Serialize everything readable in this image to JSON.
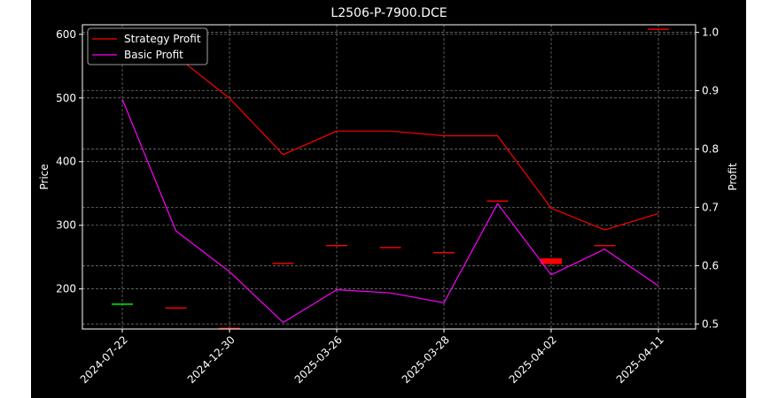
{
  "chart_data": {
    "type": "line",
    "title": "L2506-P-7900.DCE",
    "ylabel_left": "Price",
    "ylabel_right": "Profit",
    "xlabel": "",
    "x_tick_labels": [
      "2024-07-22",
      "2024-12-30",
      "2025-03-26",
      "2025-03-28",
      "2025-04-02",
      "2025-04-11"
    ],
    "left_axis": {
      "ylim": [
        137,
        615
      ],
      "ticks": [
        200,
        300,
        400,
        500,
        600
      ]
    },
    "right_axis": {
      "ylim": [
        0.4913,
        1.0131
      ],
      "ticks": [
        0.5,
        0.6,
        0.7,
        0.8,
        0.9,
        1.0
      ]
    },
    "grid": true,
    "legend_position": "top-left",
    "colors": {
      "background": "#000000",
      "foreground": "#ffffff",
      "strategy": "#ff0000",
      "basic": "#ff00ff",
      "candle_up": "#00ff00",
      "candle_down": "#ff0000"
    },
    "series": [
      {
        "name": "Strategy Profit",
        "axis": "right",
        "color": "#ff0000",
        "values": [
          1.0,
          0.9597,
          0.8871,
          0.7904,
          0.8307,
          0.8307,
          0.8227,
          0.8227,
          0.6985,
          0.6613,
          0.6894
        ]
      },
      {
        "name": "Basic Profit",
        "axis": "right",
        "color": "#ff00ff",
        "values": [
          0.8855,
          0.6597,
          0.5896,
          0.5025,
          0.5587,
          0.5532,
          0.5364,
          0.7064,
          0.5843,
          0.6283,
          0.5653
        ]
      }
    ],
    "candles": [
      {
        "open": 176,
        "close": 176,
        "color": "#00ff00"
      },
      {
        "open": 170,
        "close": 170,
        "color": "#ff0000"
      },
      {
        "open": 138,
        "close": 138,
        "color": "#ff0000"
      },
      {
        "open": 240,
        "close": 240,
        "color": "#ff0000"
      },
      {
        "open": 268,
        "close": 268,
        "color": "#ff0000"
      },
      {
        "open": 265,
        "close": 265,
        "color": "#ff0000"
      },
      {
        "open": 257,
        "close": 257,
        "color": "#ff0000"
      },
      {
        "open": 338,
        "close": 338,
        "color": "#ff0000"
      },
      {
        "open": 248,
        "close": 239,
        "color": "#ff0000"
      },
      {
        "open": 268,
        "close": 268,
        "color": "#ff0000"
      },
      {
        "open": 608,
        "close": 608,
        "color": "#ff0000"
      }
    ]
  }
}
